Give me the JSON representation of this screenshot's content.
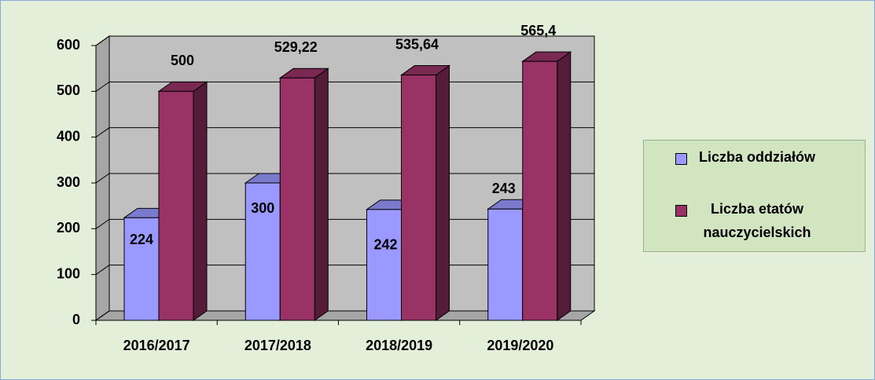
{
  "chart_data": {
    "type": "bar3d",
    "categories": [
      "2016/2017",
      "2017/2018",
      "2018/2019",
      "2019/2020"
    ],
    "series": [
      {
        "name": "Liczba oddziałów",
        "color": "#9999ff",
        "values": [
          224,
          300,
          242,
          243
        ]
      },
      {
        "name": "Liczba etatów nauczycielskich",
        "color": "#993366",
        "values": [
          500,
          529.22,
          535.64,
          565.4
        ],
        "value_labels": [
          "500",
          "529,22",
          "535,64",
          "565,4"
        ]
      }
    ],
    "ylim": [
      0,
      600
    ],
    "yticks": [
      0,
      100,
      200,
      300,
      400,
      500,
      600
    ],
    "grid": true,
    "legend": "right"
  }
}
